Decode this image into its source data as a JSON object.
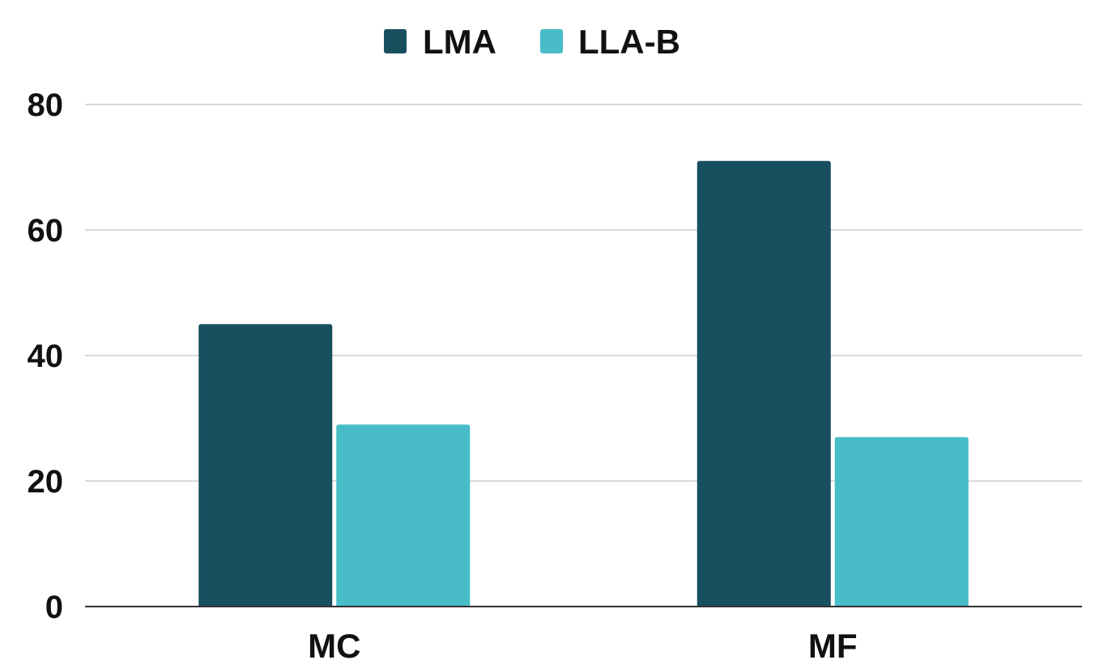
{
  "chart_data": {
    "type": "bar",
    "categories": [
      "MC",
      "MF"
    ],
    "series": [
      {
        "name": "LMA",
        "values": [
          45,
          71
        ],
        "color": "#174f5f"
      },
      {
        "name": "LLA-B",
        "values": [
          29,
          27
        ],
        "color": "#48bdc8"
      }
    ],
    "title": "",
    "xlabel": "",
    "ylabel": "",
    "ylim": [
      0,
      80
    ],
    "yticks": [
      "0",
      "20",
      "40",
      "60",
      "80"
    ],
    "grid": true,
    "legend_position": "top-center"
  },
  "colors": {
    "gridline": "#d9d9d9",
    "axis": "#333333"
  }
}
